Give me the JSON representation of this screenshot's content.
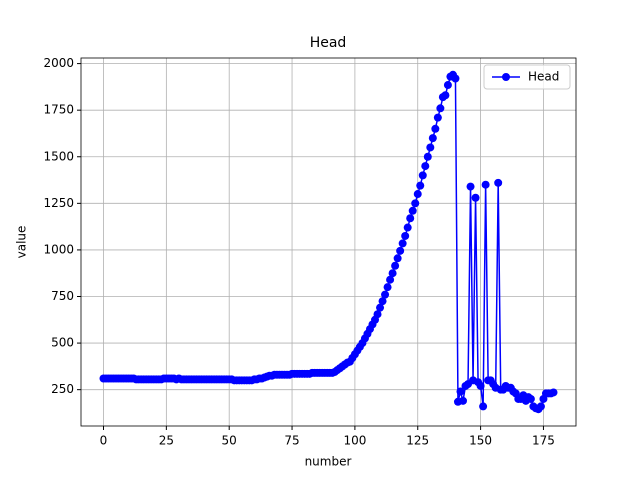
{
  "chart_data": {
    "type": "line",
    "title": "Head",
    "xlabel": "number",
    "ylabel": "value",
    "x": [
      0,
      1,
      2,
      3,
      4,
      5,
      6,
      7,
      8,
      9,
      10,
      11,
      12,
      13,
      14,
      15,
      16,
      17,
      18,
      19,
      20,
      21,
      22,
      23,
      24,
      25,
      26,
      27,
      28,
      29,
      30,
      31,
      32,
      33,
      34,
      35,
      36,
      37,
      38,
      39,
      40,
      41,
      42,
      43,
      44,
      45,
      46,
      47,
      48,
      49,
      50,
      51,
      52,
      53,
      54,
      55,
      56,
      57,
      58,
      59,
      60,
      61,
      62,
      63,
      64,
      65,
      66,
      67,
      68,
      69,
      70,
      71,
      72,
      73,
      74,
      75,
      76,
      77,
      78,
      79,
      80,
      81,
      82,
      83,
      84,
      85,
      86,
      87,
      88,
      89,
      90,
      91,
      92,
      93,
      94,
      95,
      96,
      97,
      98,
      99,
      100,
      101,
      102,
      103,
      104,
      105,
      106,
      107,
      108,
      109,
      110,
      111,
      112,
      113,
      114,
      115,
      116,
      117,
      118,
      119,
      120,
      121,
      122,
      123,
      124,
      125,
      126,
      127,
      128,
      129,
      130,
      131,
      132,
      133,
      134,
      135,
      136,
      137,
      138,
      139,
      140,
      141,
      142,
      143,
      144,
      145,
      146,
      147,
      148,
      149,
      150,
      151,
      152,
      153,
      154,
      155,
      156,
      157,
      158,
      159,
      160,
      161,
      162,
      163,
      164,
      165,
      166,
      167,
      168,
      169,
      170,
      171,
      172,
      173,
      174,
      175,
      176,
      177,
      178,
      179
    ],
    "series": [
      {
        "name": "Head",
        "color": "#0000ff",
        "values": [
          310,
          310,
          310,
          310,
          310,
          310,
          310,
          310,
          310,
          310,
          310,
          310,
          310,
          305,
          305,
          305,
          305,
          305,
          305,
          305,
          305,
          305,
          305,
          305,
          310,
          310,
          310,
          310,
          310,
          305,
          310,
          305,
          305,
          305,
          305,
          305,
          305,
          305,
          305,
          305,
          305,
          305,
          305,
          305,
          305,
          305,
          305,
          305,
          305,
          305,
          305,
          305,
          300,
          300,
          300,
          300,
          300,
          300,
          300,
          300,
          305,
          305,
          310,
          310,
          315,
          320,
          325,
          325,
          330,
          330,
          330,
          330,
          330,
          330,
          330,
          335,
          335,
          335,
          335,
          335,
          335,
          335,
          335,
          340,
          340,
          340,
          340,
          340,
          340,
          340,
          340,
          340,
          345,
          355,
          365,
          375,
          385,
          395,
          400,
          420,
          440,
          460,
          480,
          500,
          525,
          550,
          575,
          600,
          625,
          655,
          690,
          725,
          760,
          800,
          840,
          875,
          915,
          955,
          995,
          1035,
          1075,
          1120,
          1170,
          1210,
          1250,
          1300,
          1345,
          1400,
          1450,
          1500,
          1550,
          1600,
          1650,
          1710,
          1760,
          1820,
          1830,
          1885,
          1930,
          1940,
          1920,
          185,
          240,
          190,
          270,
          280,
          1340,
          300,
          1280,
          290,
          270,
          160,
          1350,
          300,
          300,
          280,
          260,
          1360,
          250,
          250,
          270,
          260,
          260,
          240,
          230,
          200,
          200,
          220,
          190,
          210,
          200,
          160,
          150,
          145,
          160,
          200,
          230,
          230,
          230,
          235
        ]
      }
    ],
    "xlim": [
      -8.95,
      187.95
    ],
    "ylim": [
      55,
      2030
    ],
    "xticks": [
      0,
      25,
      50,
      75,
      100,
      125,
      150,
      175
    ],
    "yticks": [
      250,
      500,
      750,
      1000,
      1250,
      1500,
      1750,
      2000
    ],
    "grid": true,
    "legend": "upper right"
  }
}
